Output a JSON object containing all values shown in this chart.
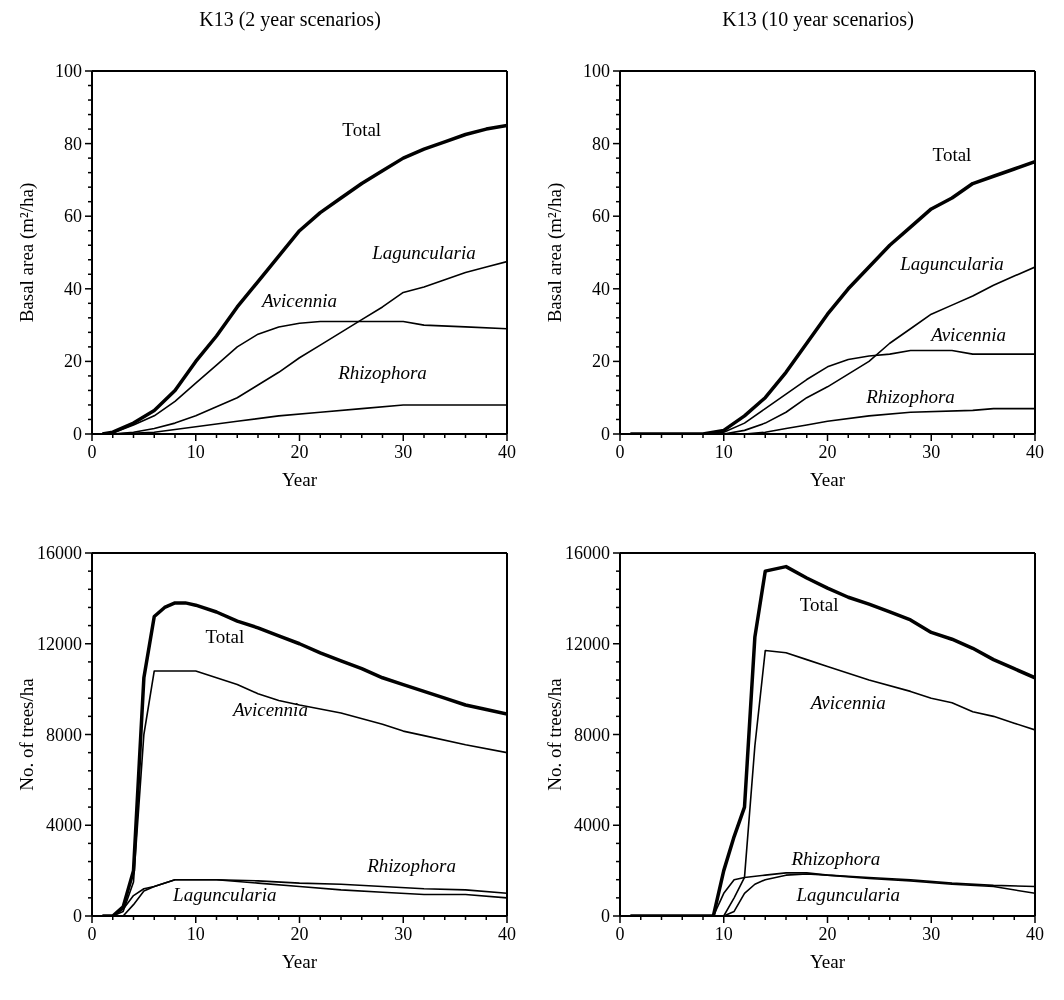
{
  "chart_data": [
    {
      "type": "line",
      "title": "K13 (2 year scenarios)",
      "xlabel": "Year",
      "ylabel": "Basal area (m²/ha)",
      "xlim": [
        0,
        40
      ],
      "ylim": [
        0,
        100
      ],
      "xticks": [
        0,
        {
          "value": 2,
          "label": null
        },
        {
          "value": 4,
          "label": null
        },
        {
          "value": 6,
          "label": null
        },
        {
          "value": 8,
          "label": null
        },
        10,
        {
          "value": 12,
          "label": null
        },
        {
          "value": 14,
          "label": null
        },
        {
          "value": 16,
          "label": null
        },
        {
          "value": 18,
          "label": null
        },
        20,
        {
          "value": 22,
          "label": null
        },
        {
          "value": 24,
          "label": null
        },
        {
          "value": 26,
          "label": null
        },
        {
          "value": 28,
          "label": null
        },
        30,
        {
          "value": 32,
          "label": null
        },
        {
          "value": 34,
          "label": null
        },
        {
          "value": 36,
          "label": null
        },
        {
          "value": 38,
          "label": null
        },
        40
      ],
      "yticks": [
        0,
        {
          "value": 4,
          "label": null
        },
        {
          "value": 8,
          "label": null
        },
        {
          "value": 12,
          "label": null
        },
        {
          "value": 16,
          "label": null
        },
        20,
        {
          "value": 24,
          "label": null
        },
        {
          "value": 28,
          "label": null
        },
        {
          "value": 32,
          "label": null
        },
        {
          "value": 36,
          "label": null
        },
        40,
        {
          "value": 44,
          "label": null
        },
        {
          "value": 48,
          "label": null
        },
        {
          "value": 52,
          "label": null
        },
        {
          "value": 56,
          "label": null
        },
        60,
        {
          "value": 64,
          "label": null
        },
        {
          "value": 68,
          "label": null
        },
        {
          "value": 72,
          "label": null
        },
        {
          "value": 76,
          "label": null
        },
        80,
        {
          "value": 84,
          "label": null
        },
        {
          "value": 88,
          "label": null
        },
        {
          "value": 92,
          "label": null
        },
        {
          "value": 96,
          "label": null
        },
        100
      ],
      "series": [
        {
          "name": "Total",
          "color": "#000000",
          "x": [
            1,
            2,
            4,
            6,
            8,
            10,
            12,
            14,
            16,
            18,
            20,
            22,
            24,
            26,
            28,
            30,
            32,
            34,
            36,
            38,
            40
          ],
          "values": [
            0,
            0.5,
            3,
            6.5,
            12,
            20,
            27,
            35,
            42,
            49,
            56,
            61,
            65,
            69,
            72.5,
            76,
            78.5,
            80.5,
            82.5,
            84,
            85
          ]
        },
        {
          "name": "Laguncularia",
          "color": "#000000",
          "x": [
            2,
            4,
            6,
            8,
            10,
            12,
            14,
            16,
            18,
            20,
            22,
            24,
            26,
            28,
            30,
            32,
            34,
            36,
            38,
            40
          ],
          "values": [
            0,
            0.5,
            1.5,
            3,
            5,
            7.5,
            10,
            13.5,
            17,
            21,
            24.5,
            28,
            31.5,
            35,
            39,
            40.5,
            42.5,
            44.5,
            46,
            47.5
          ]
        },
        {
          "name": "Avicennia",
          "color": "#000000",
          "x": [
            1,
            2,
            4,
            6,
            8,
            10,
            12,
            14,
            16,
            18,
            20,
            22,
            26,
            30,
            32,
            36,
            40
          ],
          "values": [
            0,
            0.3,
            2.5,
            5,
            9,
            14,
            19,
            24,
            27.5,
            29.5,
            30.5,
            31,
            31,
            31,
            30,
            29.5,
            29
          ]
        },
        {
          "name": "Rhizophora",
          "color": "#000000",
          "x": [
            2,
            6,
            10,
            14,
            18,
            22,
            26,
            30,
            40
          ],
          "values": [
            0,
            0.5,
            2,
            3.5,
            5,
            6,
            7,
            8,
            8
          ]
        }
      ]
    },
    {
      "type": "line",
      "title": "K13 (10 year scenarios)",
      "xlabel": "Year",
      "ylabel": "Basal area (m²/ha)",
      "xlim": [
        0,
        40
      ],
      "ylim": [
        0,
        100
      ],
      "xticks": [
        0,
        {
          "value": 2,
          "label": null
        },
        {
          "value": 4,
          "label": null
        },
        {
          "value": 6,
          "label": null
        },
        {
          "value": 8,
          "label": null
        },
        10,
        {
          "value": 12,
          "label": null
        },
        {
          "value": 14,
          "label": null
        },
        {
          "value": 16,
          "label": null
        },
        {
          "value": 18,
          "label": null
        },
        20,
        {
          "value": 22,
          "label": null
        },
        {
          "value": 24,
          "label": null
        },
        {
          "value": 26,
          "label": null
        },
        {
          "value": 28,
          "label": null
        },
        30,
        {
          "value": 32,
          "label": null
        },
        {
          "value": 34,
          "label": null
        },
        {
          "value": 36,
          "label": null
        },
        {
          "value": 38,
          "label": null
        },
        40
      ],
      "yticks": [
        0,
        {
          "value": 4,
          "label": null
        },
        {
          "value": 8,
          "label": null
        },
        {
          "value": 12,
          "label": null
        },
        {
          "value": 16,
          "label": null
        },
        20,
        {
          "value": 24,
          "label": null
        },
        {
          "value": 28,
          "label": null
        },
        {
          "value": 32,
          "label": null
        },
        {
          "value": 36,
          "label": null
        },
        40,
        {
          "value": 44,
          "label": null
        },
        {
          "value": 48,
          "label": null
        },
        {
          "value": 52,
          "label": null
        },
        {
          "value": 56,
          "label": null
        },
        60,
        {
          "value": 64,
          "label": null
        },
        {
          "value": 68,
          "label": null
        },
        {
          "value": 72,
          "label": null
        },
        {
          "value": 76,
          "label": null
        },
        80,
        {
          "value": 84,
          "label": null
        },
        {
          "value": 88,
          "label": null
        },
        {
          "value": 92,
          "label": null
        },
        {
          "value": 96,
          "label": null
        },
        100
      ],
      "series": [
        {
          "name": "Total",
          "color": "#000000",
          "x": [
            1,
            8,
            9,
            10,
            12,
            14,
            16,
            18,
            20,
            22,
            24,
            26,
            28,
            30,
            32,
            34,
            36,
            38,
            40
          ],
          "values": [
            0,
            0,
            0.5,
            1,
            5,
            10,
            17,
            25,
            33,
            40,
            46,
            52,
            57,
            62,
            65,
            69,
            71,
            73,
            75
          ]
        },
        {
          "name": "Laguncularia",
          "color": "#000000",
          "x": [
            1,
            10,
            12,
            14,
            16,
            18,
            20,
            22,
            24,
            26,
            28,
            30,
            32,
            34,
            36,
            38,
            40
          ],
          "values": [
            0,
            0,
            1,
            3,
            6,
            10,
            13,
            16.5,
            20,
            25,
            29,
            33,
            35.5,
            38,
            41,
            43.5,
            46
          ]
        },
        {
          "name": "Avicennia",
          "color": "#000000",
          "x": [
            1,
            9,
            10,
            12,
            14,
            16,
            18,
            20,
            22,
            24,
            26,
            28,
            32,
            34,
            40
          ],
          "values": [
            0,
            0,
            0.5,
            3,
            7,
            11,
            15,
            18.5,
            20.5,
            21.5,
            22,
            23,
            23,
            22,
            22
          ]
        },
        {
          "name": "Rhizophora",
          "color": "#000000",
          "x": [
            1,
            12,
            14,
            16,
            18,
            20,
            24,
            28,
            34,
            36,
            40
          ],
          "values": [
            0,
            0,
            0.5,
            1.5,
            2.5,
            3.5,
            5,
            6,
            6.5,
            7,
            7
          ]
        }
      ]
    },
    {
      "type": "line",
      "xlabel": "Year",
      "ylabel": "No. of trees/ha",
      "xlim": [
        0,
        40
      ],
      "ylim": [
        0,
        16000
      ],
      "xticks": [
        0,
        {
          "value": 2,
          "label": null
        },
        {
          "value": 4,
          "label": null
        },
        {
          "value": 6,
          "label": null
        },
        {
          "value": 8,
          "label": null
        },
        10,
        {
          "value": 12,
          "label": null
        },
        {
          "value": 14,
          "label": null
        },
        {
          "value": 16,
          "label": null
        },
        {
          "value": 18,
          "label": null
        },
        20,
        {
          "value": 22,
          "label": null
        },
        {
          "value": 24,
          "label": null
        },
        {
          "value": 26,
          "label": null
        },
        {
          "value": 28,
          "label": null
        },
        30,
        {
          "value": 32,
          "label": null
        },
        {
          "value": 34,
          "label": null
        },
        {
          "value": 36,
          "label": null
        },
        {
          "value": 38,
          "label": null
        },
        40
      ],
      "yticks": [
        0,
        {
          "value": 800,
          "label": null
        },
        {
          "value": 1600,
          "label": null
        },
        {
          "value": 2400,
          "label": null
        },
        {
          "value": 3200,
          "label": null
        },
        4000,
        {
          "value": 4800,
          "label": null
        },
        {
          "value": 5600,
          "label": null
        },
        {
          "value": 6400,
          "label": null
        },
        {
          "value": 7200,
          "label": null
        },
        8000,
        {
          "value": 8800,
          "label": null
        },
        {
          "value": 9600,
          "label": null
        },
        {
          "value": 10400,
          "label": null
        },
        {
          "value": 11200,
          "label": null
        },
        12000,
        {
          "value": 12800,
          "label": null
        },
        {
          "value": 13600,
          "label": null
        },
        {
          "value": 14400,
          "label": null
        },
        {
          "value": 15200,
          "label": null
        },
        16000
      ],
      "series": [
        {
          "name": "Total",
          "color": "#000000",
          "x": [
            1,
            2,
            3,
            4,
            5,
            6,
            7,
            8,
            9,
            10,
            12,
            14,
            16,
            18,
            20,
            22,
            24,
            26,
            28,
            30,
            32,
            34,
            36,
            38,
            40
          ],
          "values": [
            0,
            0,
            400,
            2000,
            10500,
            13200,
            13600,
            13800,
            13800,
            13700,
            13400,
            13000,
            12700,
            12350,
            12000,
            11600,
            11250,
            10900,
            10500,
            10200,
            9900,
            9600,
            9300,
            9100,
            8900
          ]
        },
        {
          "name": "Laguncularia",
          "color": "#000000",
          "x": [
            2,
            3,
            4,
            5,
            6,
            8,
            12,
            16,
            20,
            24,
            28,
            32,
            36,
            40
          ],
          "values": [
            0,
            300,
            900,
            1200,
            1300,
            1600,
            1600,
            1450,
            1300,
            1150,
            1050,
            950,
            950,
            800
          ]
        },
        {
          "name": "Avicennia",
          "color": "#000000",
          "x": [
            2,
            3,
            4,
            5,
            6,
            10,
            12,
            14,
            16,
            18,
            20,
            24,
            28,
            30,
            32,
            36,
            40
          ],
          "values": [
            0,
            200,
            1500,
            8000,
            10800,
            10800,
            10500,
            10200,
            9800,
            9500,
            9300,
            8950,
            8450,
            8150,
            7950,
            7550,
            7200
          ]
        },
        {
          "name": "Rhizophora",
          "color": "#000000",
          "x": [
            3,
            4,
            5,
            6,
            8,
            12,
            16,
            20,
            24,
            28,
            32,
            36,
            40
          ],
          "values": [
            0,
            500,
            1100,
            1300,
            1600,
            1600,
            1550,
            1450,
            1400,
            1300,
            1200,
            1150,
            1000
          ]
        }
      ]
    },
    {
      "type": "line",
      "xlabel": "Year",
      "ylabel": "No. of trees/ha",
      "xlim": [
        0,
        40
      ],
      "ylim": [
        0,
        16000
      ],
      "xticks": [
        0,
        {
          "value": 2,
          "label": null
        },
        {
          "value": 4,
          "label": null
        },
        {
          "value": 6,
          "label": null
        },
        {
          "value": 8,
          "label": null
        },
        10,
        {
          "value": 12,
          "label": null
        },
        {
          "value": 14,
          "label": null
        },
        {
          "value": 16,
          "label": null
        },
        {
          "value": 18,
          "label": null
        },
        20,
        {
          "value": 22,
          "label": null
        },
        {
          "value": 24,
          "label": null
        },
        {
          "value": 26,
          "label": null
        },
        {
          "value": 28,
          "label": null
        },
        30,
        {
          "value": 32,
          "label": null
        },
        {
          "value": 34,
          "label": null
        },
        {
          "value": 36,
          "label": null
        },
        {
          "value": 38,
          "label": null
        },
        40
      ],
      "yticks": [
        0,
        {
          "value": 800,
          "label": null
        },
        {
          "value": 1600,
          "label": null
        },
        {
          "value": 2400,
          "label": null
        },
        {
          "value": 3200,
          "label": null
        },
        4000,
        {
          "value": 4800,
          "label": null
        },
        {
          "value": 5600,
          "label": null
        },
        {
          "value": 6400,
          "label": null
        },
        {
          "value": 7200,
          "label": null
        },
        8000,
        {
          "value": 8800,
          "label": null
        },
        {
          "value": 9600,
          "label": null
        },
        {
          "value": 10400,
          "label": null
        },
        {
          "value": 11200,
          "label": null
        },
        12000,
        {
          "value": 12800,
          "label": null
        },
        {
          "value": 13600,
          "label": null
        },
        {
          "value": 14400,
          "label": null
        },
        {
          "value": 15200,
          "label": null
        },
        16000
      ],
      "series": [
        {
          "name": "Total",
          "color": "#000000",
          "x": [
            1,
            9,
            10,
            11,
            12,
            13,
            14,
            16,
            18,
            20,
            22,
            24,
            26,
            28,
            30,
            32,
            34,
            36,
            38,
            40
          ],
          "values": [
            0,
            0,
            2000,
            3500,
            4800,
            12300,
            15200,
            15400,
            14900,
            14450,
            14050,
            13750,
            13400,
            13050,
            12500,
            12200,
            11800,
            11300,
            10900,
            10500
          ]
        },
        {
          "name": "Laguncularia",
          "color": "#000000",
          "x": [
            10,
            11,
            12,
            13,
            14,
            16,
            18,
            20,
            24,
            28,
            32,
            36,
            40
          ],
          "values": [
            0,
            200,
            1000,
            1400,
            1600,
            1800,
            1850,
            1800,
            1650,
            1550,
            1400,
            1300,
            1000
          ]
        },
        {
          "name": "Avicennia",
          "color": "#000000",
          "x": [
            10,
            11,
            12,
            13,
            14,
            16,
            18,
            20,
            24,
            28,
            30,
            32,
            34,
            36,
            38,
            40
          ],
          "values": [
            0,
            800,
            1700,
            7500,
            11700,
            11600,
            11300,
            11000,
            10400,
            9900,
            9600,
            9400,
            9000,
            8800,
            8500,
            8200
          ]
        },
        {
          "name": "Rhizophora",
          "color": "#000000",
          "x": [
            9,
            10,
            11,
            12,
            14,
            16,
            18,
            20,
            24,
            28,
            32,
            36,
            40
          ],
          "values": [
            0,
            1000,
            1600,
            1700,
            1800,
            1900,
            1900,
            1800,
            1700,
            1600,
            1450,
            1350,
            1300
          ]
        }
      ]
    }
  ]
}
